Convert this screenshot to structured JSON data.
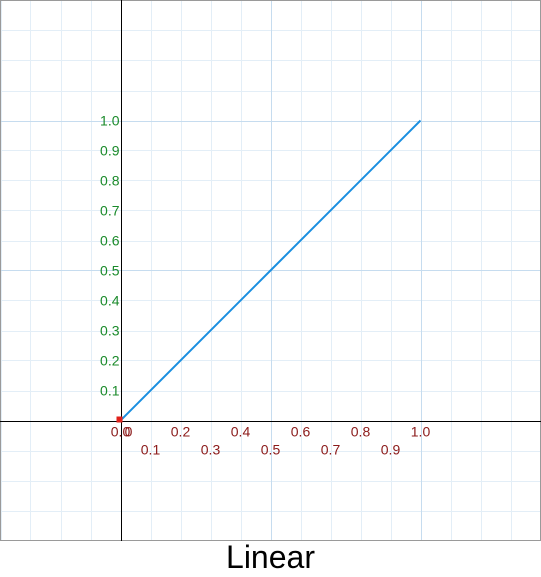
{
  "caption": "Linear",
  "chart_data": {
    "type": "line",
    "title": "",
    "xlabel": "",
    "ylabel": "",
    "xlim": [
      -0.4,
      1.4
    ],
    "ylim": [
      -0.4,
      1.4
    ],
    "grid": true,
    "x_ticks_row1": [
      "0.0",
      "0.2",
      "0.4",
      "0.6",
      "0.8",
      "1.0"
    ],
    "x_ticks_row2": [
      "0.1",
      "0.3",
      "0.5",
      "0.7",
      "0.9"
    ],
    "y_ticks": [
      "0.1",
      "0.2",
      "0.3",
      "0.4",
      "0.5",
      "0.6",
      "0.7",
      "0.8",
      "0.9",
      "1.0"
    ],
    "y_origin_label": "0",
    "series": [
      {
        "x": [
          0.0,
          0.5,
          1.0
        ],
        "y": [
          0.0,
          0.5,
          1.0
        ]
      }
    ],
    "origin_marker": {
      "x": 0.0,
      "y": 0.0
    },
    "colors": {
      "line": "#1a8fe0",
      "x_tick_text": "#8b1a1a",
      "y_tick_text": "#1a8a2a",
      "grid_minor": "#e3eef7",
      "grid_major": "#c6dcef",
      "axes": "#000000",
      "frame": "#9a9a9a",
      "marker": "#e0201a"
    }
  }
}
